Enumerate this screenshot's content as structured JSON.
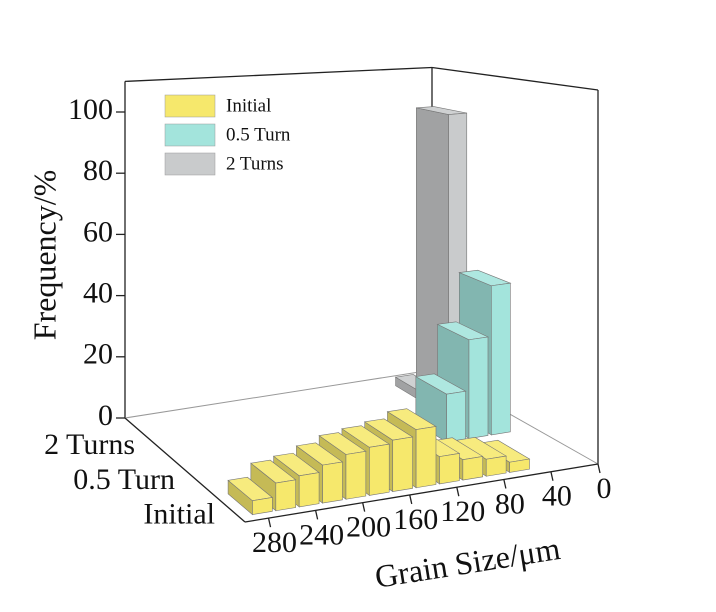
{
  "chart_data": {
    "type": "bar3d",
    "xlabel": "Grain Size/μm",
    "ylabel": "Frequency/%",
    "xlim": [
      300,
      0
    ],
    "xticks": [
      280,
      240,
      200,
      160,
      120,
      80,
      40,
      0
    ],
    "ylim": [
      0,
      110
    ],
    "yticks": [
      0,
      20,
      40,
      60,
      80,
      100
    ],
    "categories": [
      "Initial",
      "0.5 Turn",
      "2 Turns"
    ],
    "legend": "upper left",
    "series": [
      {
        "name": "Initial",
        "color": "#f6e86c",
        "x": [
          280,
          260,
          240,
          220,
          200,
          180,
          160,
          140,
          120,
          100,
          80,
          60
        ],
        "values": [
          4,
          8,
          9,
          11,
          13,
          14,
          15,
          17,
          8,
          6,
          5,
          3
        ]
      },
      {
        "name": "0.5 Turn",
        "color": "#a3e4dc",
        "x": [
          70,
          50,
          30
        ],
        "values": [
          15,
          31,
          47
        ]
      },
      {
        "name": "2 Turns",
        "color": "#c9cbcc",
        "x": [
          40,
          20
        ],
        "values": [
          3,
          97
        ]
      }
    ]
  }
}
